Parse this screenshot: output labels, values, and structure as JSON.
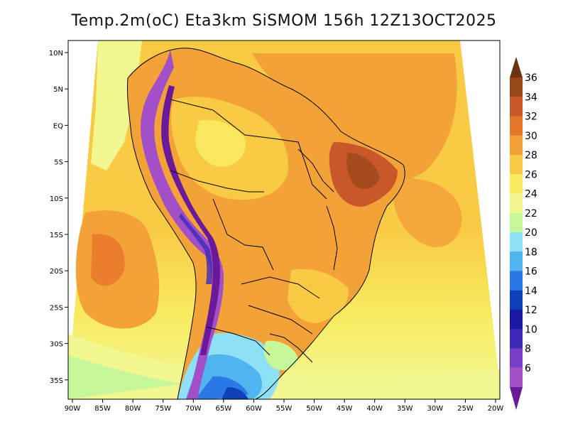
{
  "title": "Temp.2m(oC) Eta3km SiSMOM 156h 12Z13OCT2025",
  "axes": {
    "lat_labels": [
      "10N",
      "5N",
      "EQ",
      "5S",
      "10S",
      "15S",
      "20S",
      "25S",
      "30S",
      "35S"
    ],
    "lon_labels": [
      "90W",
      "85W",
      "80W",
      "75W",
      "70W",
      "65W",
      "60W",
      "55W",
      "50W",
      "45W",
      "40W",
      "35W",
      "30W",
      "25W",
      "20W"
    ]
  },
  "colorbar": {
    "min": 6,
    "max": 36,
    "step": 2,
    "labels": [
      "36",
      "34",
      "32",
      "30",
      "28",
      "26",
      "24",
      "22",
      "20",
      "18",
      "16",
      "14",
      "12",
      "10",
      "8",
      "6"
    ],
    "colors_top_to_bottom": [
      "#6b3410",
      "#97461a",
      "#c8582a",
      "#e7762b",
      "#f3a238",
      "#f9cb45",
      "#f8eb5f",
      "#f2f78f",
      "#c8f79a",
      "#8ee0f5",
      "#4fb4f0",
      "#2a78e3",
      "#1040b8",
      "#1a17a0",
      "#3d2ab8",
      "#7a3dc8",
      "#a350c8",
      "#6a1a98"
    ]
  },
  "legend_colors": {
    "ocean_warm": "#f3a238",
    "ocean_mild": "#f9cb45",
    "land_hot": "#f3a238",
    "andes_cold": "#6a1a98",
    "south_cool": "#4fb4f0"
  }
}
